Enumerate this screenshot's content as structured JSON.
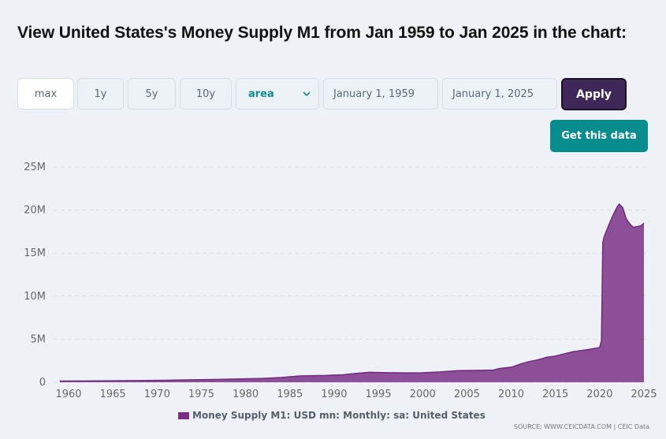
{
  "page": {
    "title": "View United States's Money Supply M1 from Jan 1959 to Jan 2025 in the chart:"
  },
  "controls": {
    "range_buttons": [
      {
        "label": "max",
        "active": true
      },
      {
        "label": "1y",
        "active": false
      },
      {
        "label": "5y",
        "active": false
      },
      {
        "label": "10y",
        "active": false
      }
    ],
    "chart_type_select": {
      "value": "area",
      "icon": "chevron-down-icon"
    },
    "start_date": "January 1, 1959",
    "end_date": "January 1, 2025",
    "apply_label": "Apply",
    "get_data_label": "Get this data"
  },
  "colors": {
    "area_fill": "#8e4f99",
    "area_line": "#6f2a7d",
    "apply_bg": "#40295a",
    "get_data_bg": "#088d8e",
    "accent_teal": "#138c8c"
  },
  "legend_label": "Money Supply M1: USD mn: Monthly: sa: United States",
  "source": "SOURCE: WWW.CEICDATA.COM | CEIC Data",
  "chart_data": {
    "type": "area",
    "title": "",
    "xlabel": "",
    "ylabel": "",
    "series": [
      {
        "name": "Money Supply M1: USD mn: Monthly: sa: United States",
        "x": [
          1959.0,
          1962,
          1965,
          1968,
          1971,
          1974,
          1977,
          1980,
          1982,
          1984,
          1986,
          1987,
          1989,
          1991,
          1993,
          1994,
          1996,
          1998,
          2000,
          2002,
          2004,
          2006,
          2008,
          2008.7,
          2010,
          2011,
          2012,
          2013,
          2014,
          2015,
          2016,
          2017,
          2018,
          2019,
          2020.0,
          2020.2,
          2020.35,
          2020.5,
          2021.0,
          2021.5,
          2022.0,
          2022.2,
          2022.6,
          2023.0,
          2023.4,
          2023.8,
          2024.3,
          2024.7,
          2025.0
        ],
        "values": [
          0.14,
          0.15,
          0.17,
          0.19,
          0.23,
          0.28,
          0.33,
          0.4,
          0.45,
          0.55,
          0.72,
          0.75,
          0.79,
          0.87,
          1.08,
          1.15,
          1.11,
          1.09,
          1.1,
          1.2,
          1.35,
          1.37,
          1.42,
          1.6,
          1.75,
          2.1,
          2.4,
          2.6,
          2.9,
          3.05,
          3.3,
          3.55,
          3.7,
          3.85,
          4.05,
          4.8,
          16.2,
          16.9,
          18.2,
          19.4,
          20.4,
          20.7,
          20.3,
          19.0,
          18.4,
          18.0,
          18.1,
          18.2,
          18.5
        ]
      }
    ],
    "x_ticks": [
      "1960",
      "1965",
      "1970",
      "1975",
      "1980",
      "1985",
      "1990",
      "1995",
      "2000",
      "2005",
      "2010",
      "2015",
      "2020",
      "2025"
    ],
    "y_ticks": [
      "0",
      "5M",
      "10M",
      "15M",
      "20M",
      "25M"
    ],
    "y_tick_values": [
      0,
      5,
      10,
      15,
      20,
      25
    ],
    "y_unit": "millions (M)",
    "xlim": [
      1959,
      2025
    ],
    "ylim": [
      0,
      25
    ],
    "grid": true,
    "legend": "bottom-center"
  }
}
